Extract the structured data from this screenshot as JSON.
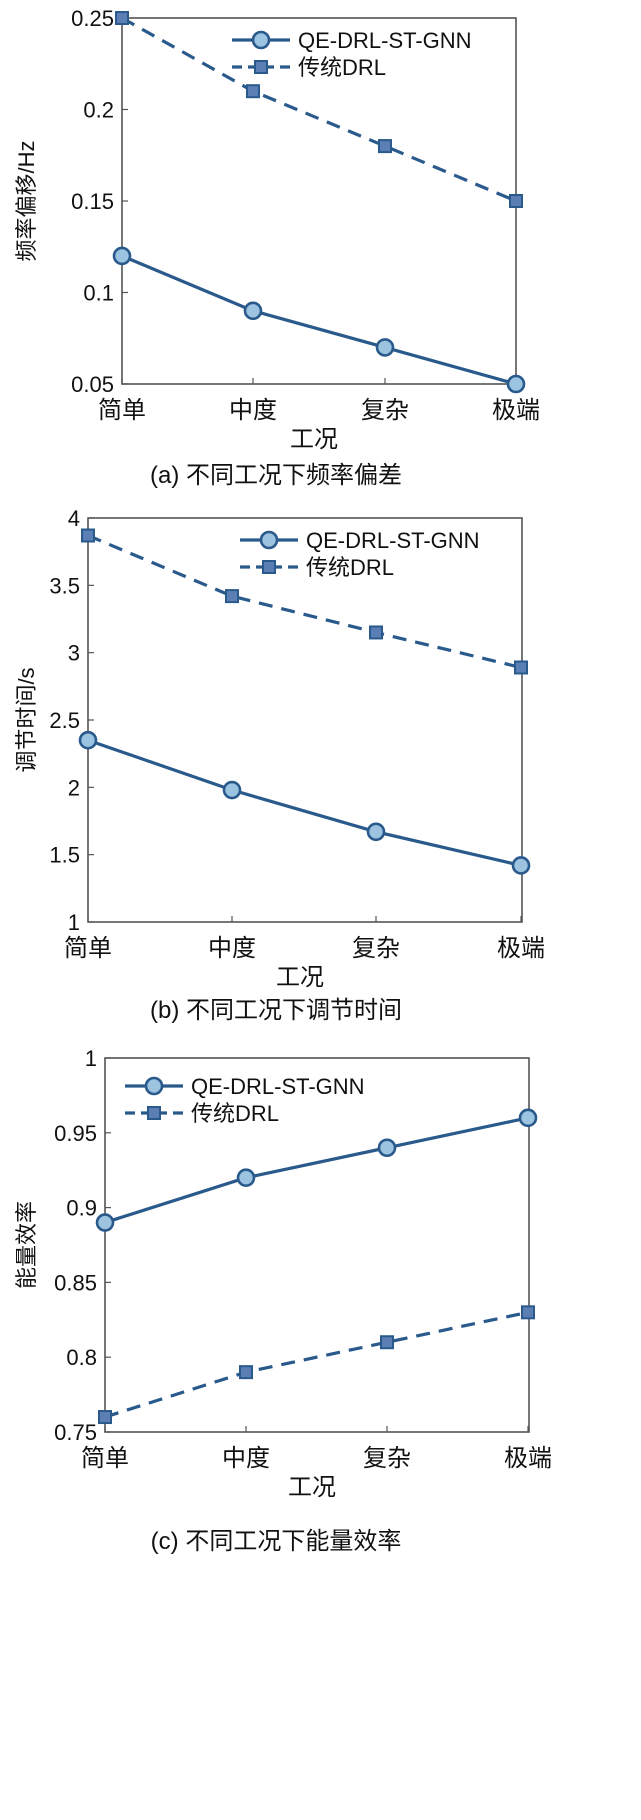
{
  "colors": {
    "line": "#2a5a8c",
    "marker_fill": "#9cc3e0",
    "square_fill": "#5b7fb5",
    "axis": "#555555"
  },
  "chart_data": [
    {
      "type": "line",
      "caption": "(a) 不同工况下频率偏差",
      "xlabel": "工况",
      "ylabel": "频率偏移/Hz",
      "categories": [
        "简单",
        "中度",
        "复杂",
        "极端"
      ],
      "ylim": [
        0.05,
        0.25
      ],
      "yticks": [
        0.05,
        0.1,
        0.15,
        0.2,
        0.25
      ],
      "ytick_labels": [
        "0.05",
        "0.1",
        "0.15",
        "0.2",
        "0.25"
      ],
      "legend_position": "top-right",
      "series": [
        {
          "name": "QE-DRL-ST-GNN",
          "style": "solid-circle",
          "values": [
            0.12,
            0.09,
            0.07,
            0.05
          ]
        },
        {
          "name": "传统DRL",
          "style": "dashed-square",
          "values": [
            0.25,
            0.21,
            0.18,
            0.15
          ]
        }
      ]
    },
    {
      "type": "line",
      "caption": "(b) 不同工况下调节时间",
      "xlabel": "工况",
      "ylabel": "调节时间/s",
      "categories": [
        "简单",
        "中度",
        "复杂",
        "极端"
      ],
      "ylim": [
        1,
        4
      ],
      "yticks": [
        1,
        1.5,
        2,
        2.5,
        3,
        3.5,
        4
      ],
      "ytick_labels": [
        "1",
        "1.5",
        "2",
        "2.5",
        "3",
        "3.5",
        "4"
      ],
      "legend_position": "top-right",
      "series": [
        {
          "name": "QE-DRL-ST-GNN",
          "style": "solid-circle",
          "values": [
            2.35,
            1.98,
            1.67,
            1.42
          ]
        },
        {
          "name": "传统DRL",
          "style": "dashed-square",
          "values": [
            3.87,
            3.42,
            3.15,
            2.89
          ]
        }
      ]
    },
    {
      "type": "line",
      "caption": "(c) 不同工况下能量效率",
      "xlabel": "工况",
      "ylabel": "能量效率",
      "categories": [
        "简单",
        "中度",
        "复杂",
        "极端"
      ],
      "ylim": [
        0.75,
        1
      ],
      "yticks": [
        0.75,
        0.8,
        0.85,
        0.9,
        0.95,
        1
      ],
      "ytick_labels": [
        "0.75",
        "0.8",
        "0.85",
        "0.9",
        "0.95",
        "1"
      ],
      "legend_position": "top-left",
      "series": [
        {
          "name": "QE-DRL-ST-GNN",
          "style": "solid-circle",
          "values": [
            0.89,
            0.92,
            0.94,
            0.96
          ]
        },
        {
          "name": "传统DRL",
          "style": "dashed-square",
          "values": [
            0.76,
            0.79,
            0.81,
            0.83
          ]
        }
      ]
    }
  ]
}
